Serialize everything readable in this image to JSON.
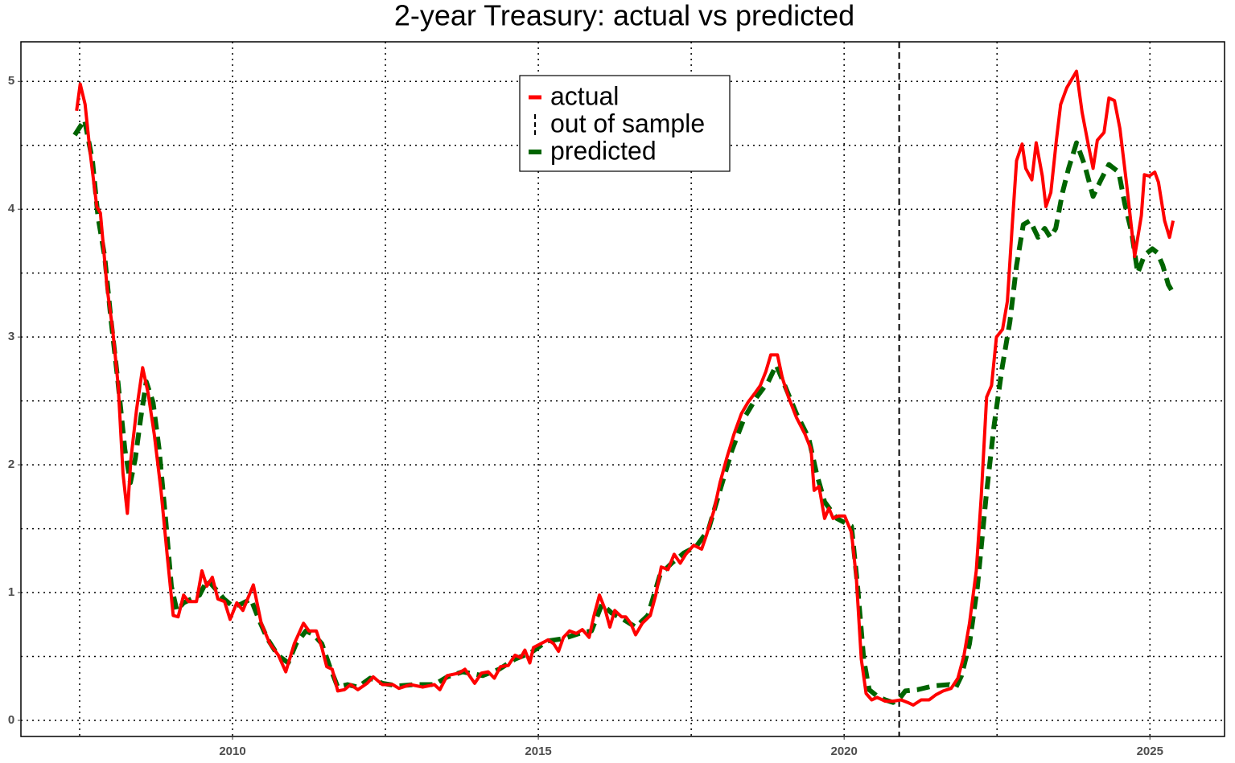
{
  "chart_data": {
    "type": "line",
    "title": "2-year Treasury: actual vs predicted",
    "xlim": [
      2006.54,
      2026.22
    ],
    "ylim": [
      -0.126,
      5.31
    ],
    "xticks": [
      2010,
      2015,
      2020,
      2025
    ],
    "xminor": [
      2007.5,
      2012.5,
      2017.5,
      2022.5
    ],
    "yticks": [
      0,
      1,
      2,
      3,
      4,
      5
    ],
    "yminor": [
      0.5,
      1.5,
      2.5,
      3.5,
      4.5
    ],
    "grid": true,
    "legend": "top-center",
    "series": [
      {
        "name": "actual",
        "color": "#ff0000",
        "dash": false,
        "x": [
          2007.45,
          2007.51,
          2007.59,
          2007.67,
          2007.78,
          2007.84,
          2007.95,
          2008.04,
          2008.13,
          2008.21,
          2008.28,
          2008.34,
          2008.43,
          2008.53,
          2008.62,
          2008.72,
          2008.83,
          2008.93,
          2009.03,
          2009.11,
          2009.2,
          2009.28,
          2009.41,
          2009.5,
          2009.58,
          2009.67,
          2009.76,
          2009.87,
          2009.96,
          2010.07,
          2010.17,
          2010.34,
          2010.47,
          2010.61,
          2010.75,
          2010.87,
          2011.01,
          2011.16,
          2011.25,
          2011.37,
          2011.46,
          2011.54,
          2011.63,
          2011.72,
          2011.83,
          2011.93,
          2012.05,
          2012.2,
          2012.3,
          2012.45,
          2012.62,
          2012.72,
          2012.91,
          2013.11,
          2013.3,
          2013.39,
          2013.51,
          2013.7,
          2013.8,
          2013.96,
          2014.07,
          2014.18,
          2014.28,
          2014.38,
          2014.51,
          2014.62,
          2014.71,
          2014.78,
          2014.86,
          2014.92,
          2015.04,
          2015.16,
          2015.25,
          2015.33,
          2015.41,
          2015.51,
          2015.62,
          2015.72,
          2015.83,
          2015.91,
          2016.0,
          2016.09,
          2016.17,
          2016.25,
          2016.36,
          2016.43,
          2016.51,
          2016.59,
          2016.7,
          2016.83,
          2016.92,
          2017.01,
          2017.12,
          2017.22,
          2017.32,
          2017.41,
          2017.54,
          2017.67,
          2017.75,
          2017.87,
          2017.97,
          2018.08,
          2018.2,
          2018.32,
          2018.43,
          2018.54,
          2018.63,
          2018.72,
          2018.8,
          2018.91,
          2018.99,
          2019.09,
          2019.22,
          2019.36,
          2019.46,
          2019.51,
          2019.59,
          2019.68,
          2019.75,
          2019.82,
          2019.91,
          2020.01,
          2020.12,
          2020.2,
          2020.28,
          2020.36,
          2020.45,
          2020.54,
          2020.67,
          2020.8,
          2020.93,
          2021.04,
          2021.13,
          2021.26,
          2021.39,
          2021.5,
          2021.62,
          2021.75,
          2021.86,
          2021.96,
          2022.05,
          2022.16,
          2022.24,
          2022.33,
          2022.41,
          2022.49,
          2022.59,
          2022.67,
          2022.75,
          2022.82,
          2022.91,
          2022.97,
          2023.07,
          2023.14,
          2023.24,
          2023.3,
          2023.38,
          2023.47,
          2023.54,
          2023.64,
          2023.8,
          2023.89,
          2023.99,
          2024.07,
          2024.14,
          2024.25,
          2024.33,
          2024.42,
          2024.51,
          2024.62,
          2024.75,
          2024.86,
          2024.91,
          2024.99,
          2025.08,
          2025.14,
          2025.24,
          2025.32,
          2025.38
        ],
        "values": [
          4.77,
          4.98,
          4.82,
          4.45,
          4.02,
          3.97,
          3.38,
          3.06,
          2.62,
          1.93,
          1.62,
          2.05,
          2.43,
          2.76,
          2.56,
          2.24,
          1.8,
          1.3,
          0.82,
          0.81,
          0.98,
          0.93,
          0.93,
          1.17,
          1.05,
          1.12,
          0.95,
          0.93,
          0.79,
          0.92,
          0.86,
          1.06,
          0.76,
          0.6,
          0.51,
          0.38,
          0.6,
          0.76,
          0.7,
          0.7,
          0.57,
          0.42,
          0.4,
          0.23,
          0.24,
          0.28,
          0.24,
          0.29,
          0.34,
          0.28,
          0.28,
          0.25,
          0.28,
          0.26,
          0.28,
          0.24,
          0.35,
          0.37,
          0.4,
          0.29,
          0.37,
          0.38,
          0.33,
          0.42,
          0.43,
          0.51,
          0.49,
          0.55,
          0.45,
          0.57,
          0.6,
          0.63,
          0.6,
          0.54,
          0.65,
          0.7,
          0.68,
          0.71,
          0.65,
          0.82,
          0.98,
          0.87,
          0.73,
          0.86,
          0.81,
          0.81,
          0.76,
          0.67,
          0.76,
          0.82,
          0.98,
          1.2,
          1.18,
          1.3,
          1.23,
          1.3,
          1.37,
          1.34,
          1.45,
          1.64,
          1.86,
          2.05,
          2.24,
          2.4,
          2.49,
          2.56,
          2.62,
          2.73,
          2.86,
          2.86,
          2.68,
          2.53,
          2.37,
          2.24,
          2.12,
          1.8,
          1.83,
          1.58,
          1.66,
          1.58,
          1.6,
          1.6,
          1.47,
          1.11,
          0.48,
          0.21,
          0.16,
          0.18,
          0.15,
          0.15,
          0.16,
          0.14,
          0.12,
          0.16,
          0.16,
          0.2,
          0.23,
          0.25,
          0.33,
          0.51,
          0.76,
          1.17,
          1.74,
          2.53,
          2.62,
          3.0,
          3.06,
          3.28,
          3.88,
          4.38,
          4.51,
          4.32,
          4.23,
          4.52,
          4.26,
          4.02,
          4.13,
          4.54,
          4.82,
          4.95,
          5.08,
          4.76,
          4.51,
          4.32,
          4.54,
          4.6,
          4.87,
          4.85,
          4.63,
          4.19,
          3.63,
          3.95,
          4.27,
          4.26,
          4.29,
          4.21,
          3.91,
          3.78,
          3.91
        ]
      },
      {
        "name": "out of sample",
        "color": "#000000",
        "dash": true,
        "vline": 2020.9
      },
      {
        "name": "predicted",
        "color": "#006400",
        "dash": true,
        "x": [
          2007.42,
          2007.58,
          2007.71,
          2007.8,
          2007.91,
          2008.01,
          2008.12,
          2008.24,
          2008.33,
          2008.41,
          2008.5,
          2008.59,
          2008.7,
          2008.8,
          2008.91,
          2009.0,
          2009.09,
          2009.2,
          2009.33,
          2009.46,
          2009.59,
          2009.72,
          2009.86,
          2010.01,
          2010.14,
          2010.3,
          2010.43,
          2010.57,
          2010.74,
          2010.91,
          2011.04,
          2011.2,
          2011.33,
          2011.46,
          2011.59,
          2011.72,
          2011.88,
          2012.05,
          2012.25,
          2012.45,
          2012.71,
          2012.97,
          2013.3,
          2013.51,
          2013.76,
          2014.09,
          2014.36,
          2014.62,
          2014.88,
          2015.14,
          2015.41,
          2015.67,
          2015.87,
          2016.04,
          2016.2,
          2016.39,
          2016.59,
          2016.79,
          2016.99,
          2017.18,
          2017.38,
          2017.58,
          2017.78,
          2017.97,
          2018.17,
          2018.37,
          2018.57,
          2018.76,
          2018.89,
          2019.03,
          2019.22,
          2019.42,
          2019.55,
          2019.68,
          2019.88,
          2020.12,
          2020.22,
          2020.32,
          2020.41,
          2020.54,
          2020.67,
          2020.8,
          2020.89,
          2021.0,
          2021.2,
          2021.46,
          2021.72,
          2021.83,
          2021.92,
          2022.05,
          2022.18,
          2022.32,
          2022.45,
          2022.58,
          2022.71,
          2022.82,
          2022.93,
          2023.04,
          2023.17,
          2023.28,
          2023.37,
          2023.46,
          2023.57,
          2023.67,
          2023.8,
          2023.93,
          2024.07,
          2024.2,
          2024.33,
          2024.49,
          2024.59,
          2024.7,
          2024.8,
          2024.91,
          2025.04,
          2025.12,
          2025.21,
          2025.3,
          2025.41
        ],
        "values": [
          4.58,
          4.7,
          4.38,
          3.94,
          3.63,
          3.15,
          2.68,
          2.12,
          1.86,
          2.05,
          2.37,
          2.65,
          2.49,
          2.12,
          1.55,
          1.05,
          0.86,
          0.92,
          0.95,
          0.98,
          1.1,
          1.03,
          0.95,
          0.89,
          0.91,
          0.95,
          0.79,
          0.64,
          0.51,
          0.45,
          0.6,
          0.7,
          0.67,
          0.6,
          0.42,
          0.26,
          0.28,
          0.26,
          0.33,
          0.29,
          0.27,
          0.28,
          0.28,
          0.34,
          0.38,
          0.35,
          0.4,
          0.48,
          0.53,
          0.62,
          0.64,
          0.68,
          0.7,
          0.91,
          0.84,
          0.79,
          0.73,
          0.82,
          1.14,
          1.23,
          1.31,
          1.36,
          1.49,
          1.8,
          2.12,
          2.37,
          2.53,
          2.65,
          2.78,
          2.62,
          2.4,
          2.21,
          1.93,
          1.71,
          1.58,
          1.52,
          1.05,
          0.48,
          0.24,
          0.19,
          0.16,
          0.14,
          0.16,
          0.23,
          0.24,
          0.27,
          0.28,
          0.26,
          0.35,
          0.6,
          1.05,
          1.74,
          2.3,
          2.75,
          3.12,
          3.56,
          3.88,
          3.91,
          3.78,
          3.85,
          3.78,
          3.85,
          4.13,
          4.32,
          4.52,
          4.35,
          4.1,
          4.23,
          4.35,
          4.29,
          4.04,
          3.82,
          3.5,
          3.64,
          3.69,
          3.66,
          3.56,
          3.41,
          3.32
        ]
      }
    ]
  }
}
